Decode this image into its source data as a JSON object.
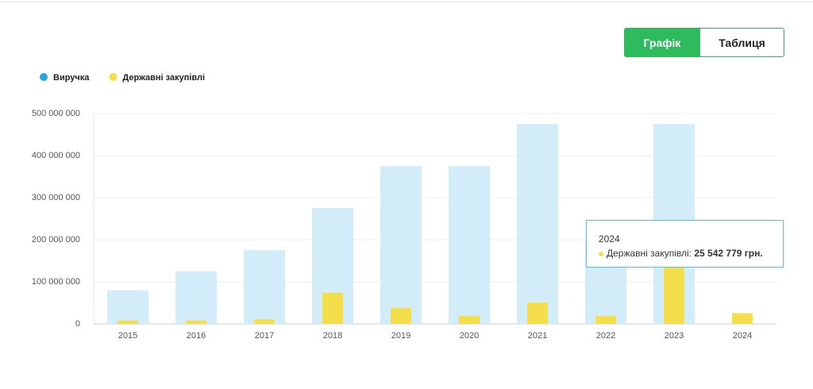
{
  "tabs": [
    "Графік",
    "Таблиця"
  ],
  "chart_data": {
    "type": "bar",
    "categories": [
      "2015",
      "2016",
      "2017",
      "2018",
      "2019",
      "2020",
      "2021",
      "2022",
      "2023",
      "2024"
    ],
    "series": [
      {
        "name": "Виручка",
        "color": "#d3ecf9",
        "marker_color": "#29a8e0",
        "values": [
          80000000,
          125000000,
          175000000,
          275000000,
          375000000,
          375000000,
          475000000,
          200000000,
          475000000,
          null
        ]
      },
      {
        "name": "Державні закупівлі",
        "color": "#f5de4c",
        "marker_color": "#f5de4c",
        "values": [
          8000000,
          8000000,
          11000000,
          74000000,
          38000000,
          19000000,
          51000000,
          19000000,
          140000000,
          25542779
        ]
      }
    ],
    "ylim": [
      0,
      500000000
    ],
    "yticks": [
      0,
      {
        "value": 100000000,
        "label": "100 000 000"
      },
      {
        "value": 200000000,
        "label": "200 000 000"
      },
      {
        "value": 300000000,
        "label": "300 000 000"
      },
      {
        "value": 400000000,
        "label": "400 000 000"
      },
      {
        "value": 500000000,
        "label": "500 000 000"
      }
    ],
    "grid": true
  },
  "tooltip": {
    "title": "2024",
    "label": "Державні закупівлі:",
    "value": "25 542 779 грн."
  }
}
